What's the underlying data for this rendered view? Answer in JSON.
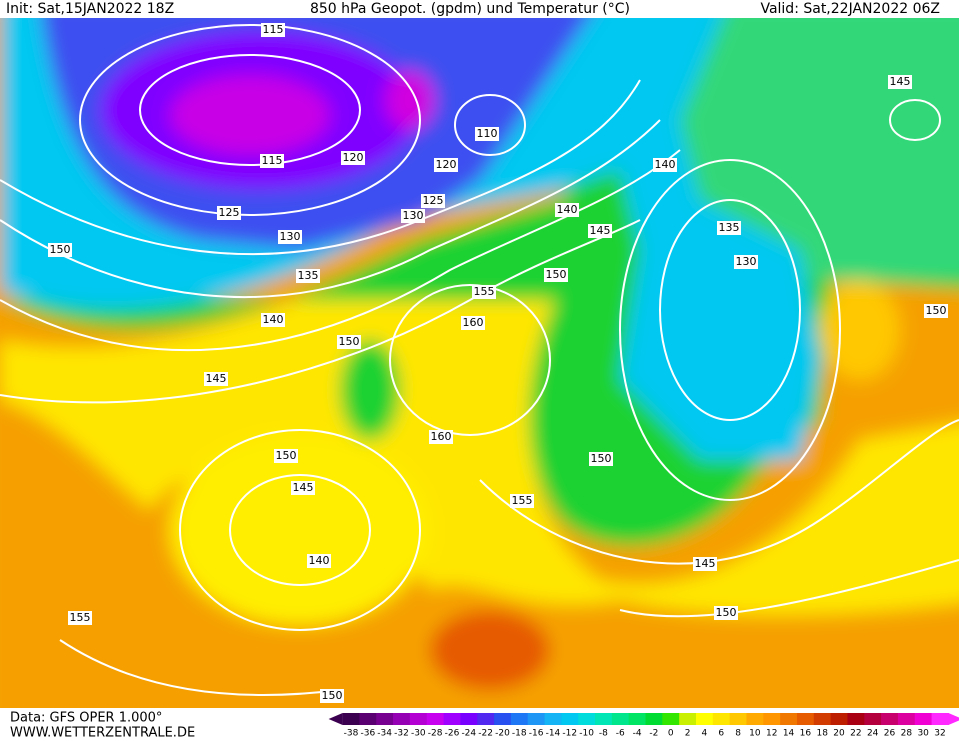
{
  "header": {
    "init": "Init: Sat,15JAN2022 18Z",
    "title": "850 hPa Geopot. (gpdm) und Temperatur (°C)",
    "valid": "Valid: Sat,22JAN2022 06Z"
  },
  "footer": {
    "data_source": "Data: GFS OPER 1.000°",
    "website": "WWW.WETTERZENTRALE.DE"
  },
  "colorbar": {
    "labels": [
      -38,
      -36,
      -34,
      -32,
      -30,
      -28,
      -26,
      -24,
      -22,
      -20,
      -18,
      -16,
      -14,
      -12,
      -10,
      -8,
      -6,
      -4,
      -2,
      0,
      2,
      4,
      6,
      8,
      10,
      12,
      14,
      16,
      18,
      20,
      22,
      24,
      26,
      28,
      30,
      32
    ],
    "colors": [
      "#3c0050",
      "#5a0070",
      "#780090",
      "#9600b4",
      "#b400d2",
      "#c800f0",
      "#a000ff",
      "#7800ff",
      "#5028f0",
      "#2850f0",
      "#1e78f5",
      "#1e96f5",
      "#14b4f5",
      "#00c8f0",
      "#00dcdc",
      "#00e6b4",
      "#00e68c",
      "#00e664",
      "#00dc32",
      "#32e600",
      "#c8f000",
      "#ffff00",
      "#ffe600",
      "#ffc800",
      "#ffaa00",
      "#ff9600",
      "#f07800",
      "#e65a00",
      "#d23c00",
      "#be1e00",
      "#aa0014",
      "#b4003c",
      "#c8006e",
      "#dc00a0",
      "#f000d2",
      "#ff28ff"
    ]
  },
  "contour_labels": [
    115,
    115,
    120,
    120,
    125,
    125,
    130,
    130,
    135,
    140,
    140,
    140,
    145,
    145,
    145,
    135,
    130,
    150,
    150,
    155,
    160,
    150,
    160,
    150,
    145,
    155,
    150,
    140,
    145,
    150,
    155,
    150,
    150,
    110
  ]
}
